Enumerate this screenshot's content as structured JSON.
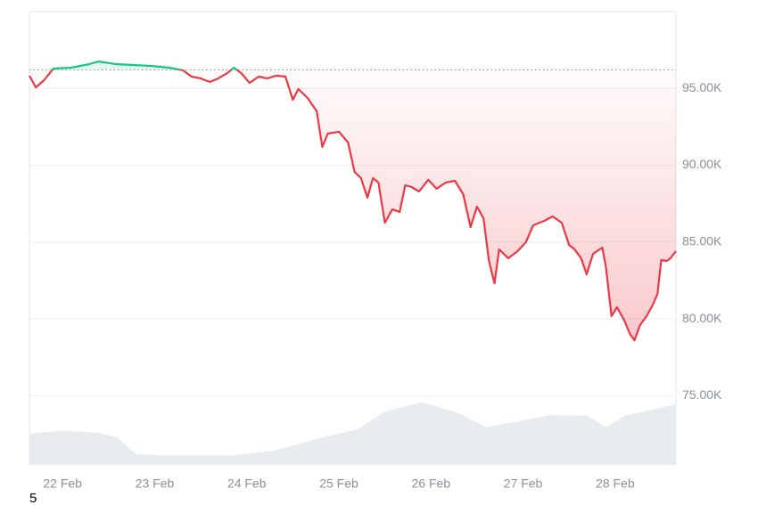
{
  "chart_data": {
    "type": "line",
    "xlim": [
      21.64,
      28.66
    ],
    "ylim": [
      70500,
      100000
    ],
    "xticks": [
      {
        "value": 22,
        "label": "22 Feb"
      },
      {
        "value": 23,
        "label": "23 Feb"
      },
      {
        "value": 24,
        "label": "24 Feb"
      },
      {
        "value": 25,
        "label": "25 Feb"
      },
      {
        "value": 26,
        "label": "26 Feb"
      },
      {
        "value": 27,
        "label": "27 Feb"
      },
      {
        "value": 28,
        "label": "28 Feb"
      }
    ],
    "yticks": [
      {
        "value": 75000,
        "label": "75.00K"
      },
      {
        "value": 80000,
        "label": "80.00K"
      },
      {
        "value": 85000,
        "label": "85.00K"
      },
      {
        "value": 90000,
        "label": "90.00K"
      },
      {
        "value": 95000,
        "label": "95.00K"
      }
    ],
    "grid": true,
    "baseline": 96210,
    "color_above": "#16c784",
    "color_below": "#ea3943",
    "series": [
      {
        "x": [
          21.64,
          21.71,
          21.8,
          21.9,
          22.09,
          22.29,
          22.39,
          22.58,
          22.77,
          22.97,
          23.16,
          23.31,
          23.4,
          23.5,
          23.6,
          23.69,
          23.79,
          23.86,
          23.94,
          24.03,
          24.13,
          24.22,
          24.32,
          24.42,
          24.5,
          24.56,
          24.66,
          24.76,
          24.82,
          24.88,
          25.0,
          25.1,
          25.17,
          25.24,
          25.31,
          25.37,
          25.43,
          25.5,
          25.58,
          25.66,
          25.72,
          25.79,
          25.87,
          25.97,
          26.06,
          26.16,
          26.26,
          26.35,
          26.43,
          26.5,
          26.57,
          26.63,
          26.69,
          26.74,
          26.84,
          26.94,
          27.03,
          27.11,
          27.23,
          27.32,
          27.42,
          27.5,
          27.56,
          27.63,
          27.69,
          27.76,
          27.86,
          27.9,
          27.96,
          28.02,
          28.1,
          28.16,
          28.21,
          28.27,
          28.34,
          28.41,
          28.46,
          28.5,
          28.56,
          28.6,
          28.66
        ],
        "values": [
          95830,
          95070,
          95540,
          96290,
          96350,
          96580,
          96750,
          96580,
          96520,
          96460,
          96350,
          96170,
          95770,
          95650,
          95420,
          95650,
          96000,
          96350,
          96000,
          95360,
          95770,
          95650,
          95830,
          95770,
          94260,
          94960,
          94380,
          93510,
          91190,
          92060,
          92180,
          91480,
          89570,
          89160,
          87890,
          89160,
          88870,
          86260,
          87130,
          86960,
          88700,
          88580,
          88290,
          89050,
          88470,
          88870,
          88990,
          88120,
          85970,
          87310,
          86550,
          83770,
          82320,
          84520,
          83950,
          84410,
          84990,
          86090,
          86380,
          86670,
          86260,
          84810,
          84520,
          83950,
          82900,
          84240,
          84640,
          83370,
          80180,
          80760,
          79890,
          79020,
          78610,
          79600,
          80180,
          80930,
          81630,
          83830,
          83770,
          83950,
          84410
        ]
      }
    ],
    "volume": {
      "color": "#e9ecef",
      "ylim": [
        0,
        100
      ],
      "x": [
        21.64,
        22.0,
        22.4,
        22.6,
        22.8,
        23.2,
        23.8,
        24.3,
        24.8,
        25.2,
        25.5,
        25.9,
        26.3,
        26.6,
        26.9,
        27.3,
        27.7,
        27.9,
        28.1,
        28.66
      ],
      "values": [
        44,
        48,
        45,
        38,
        15,
        13,
        13,
        20,
        38,
        50,
        75,
        88,
        73,
        53,
        60,
        70,
        69,
        53,
        69,
        85
      ]
    },
    "footnote": "5"
  }
}
